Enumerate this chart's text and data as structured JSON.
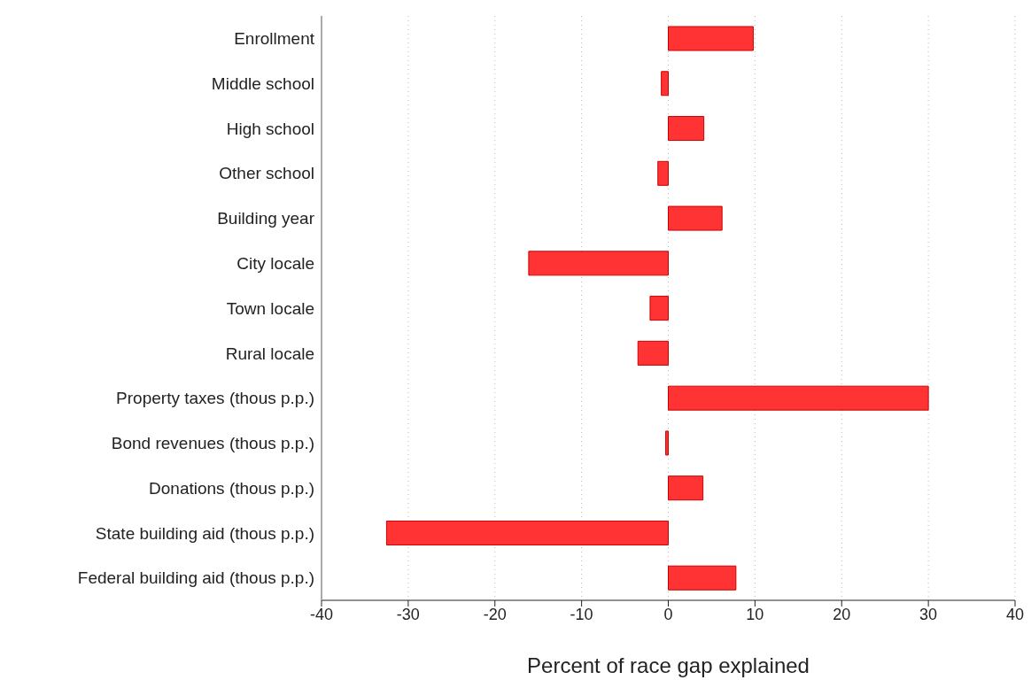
{
  "chart_data": {
    "type": "bar",
    "orientation": "horizontal",
    "xlabel": "Percent of race gap explained",
    "categories": [
      "Enrollment",
      "Middle school",
      "High school",
      "Other school",
      "Building year",
      "City locale",
      "Town locale",
      "Rural locale",
      "Property taxes (thous p.p.)",
      "Bond revenues (thous p.p.)",
      "Donations (thous p.p.)",
      "State building aid (thous p.p.)",
      "Federal building aid (thous p.p.)"
    ],
    "values": [
      9.8,
      -0.8,
      4.1,
      -1.2,
      6.2,
      -16.1,
      -2.1,
      -3.5,
      30.0,
      -0.3,
      4.0,
      -32.5,
      7.8
    ],
    "color": "#ff3333",
    "xlim": [
      -40,
      40
    ],
    "xticks": [
      -40,
      -30,
      -20,
      -10,
      0,
      10,
      20,
      30,
      40
    ],
    "grid": "x"
  }
}
